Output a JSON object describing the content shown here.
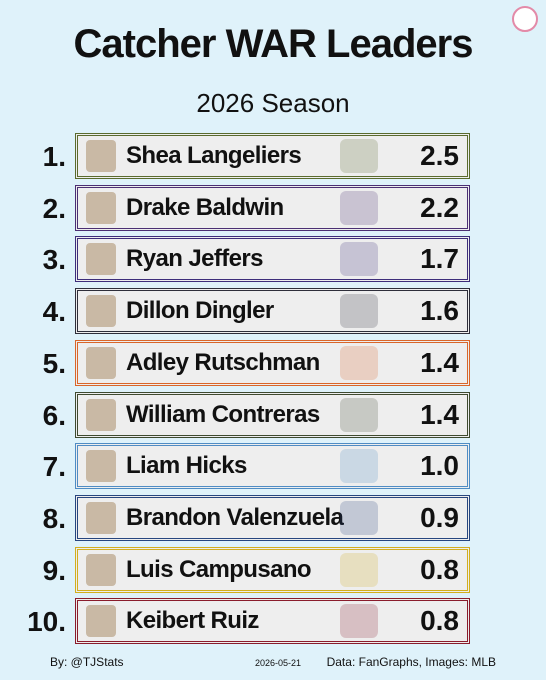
{
  "header": {
    "title": "Catcher WAR Leaders",
    "subtitle": "2026 Season"
  },
  "rows": [
    {
      "rank": "1.",
      "name": "Shea Langeliers",
      "war": "2.5",
      "color": "#5a6b2e"
    },
    {
      "rank": "2.",
      "name": "Drake Baldwin",
      "war": "2.2",
      "color": "#4b2f73"
    },
    {
      "rank": "3.",
      "name": "Ryan Jeffers",
      "war": "1.7",
      "color": "#3d2d7a"
    },
    {
      "rank": "4.",
      "name": "Dillon Dingler",
      "war": "1.6",
      "color": "#2e2e3a"
    },
    {
      "rank": "5.",
      "name": "Adley Rutschman",
      "war": "1.4",
      "color": "#d9662a"
    },
    {
      "rank": "6.",
      "name": "William Contreras",
      "war": "1.4",
      "color": "#3e4a30"
    },
    {
      "rank": "7.",
      "name": "Liam Hicks",
      "war": "1.0",
      "color": "#4f8cc4"
    },
    {
      "rank": "8.",
      "name": "Brandon Valenzuela",
      "war": "0.9",
      "color": "#27467f"
    },
    {
      "rank": "9.",
      "name": "Luis Campusano",
      "war": "0.8",
      "color": "#d2ae1e"
    },
    {
      "rank": "10.",
      "name": "Keibert Ruiz",
      "war": "0.8",
      "color": "#8a1c2c"
    }
  ],
  "footer": {
    "credit": "By: @TJStats",
    "date": "2026-05-21",
    "source": "Data: FanGraphs, Images: MLB"
  }
}
